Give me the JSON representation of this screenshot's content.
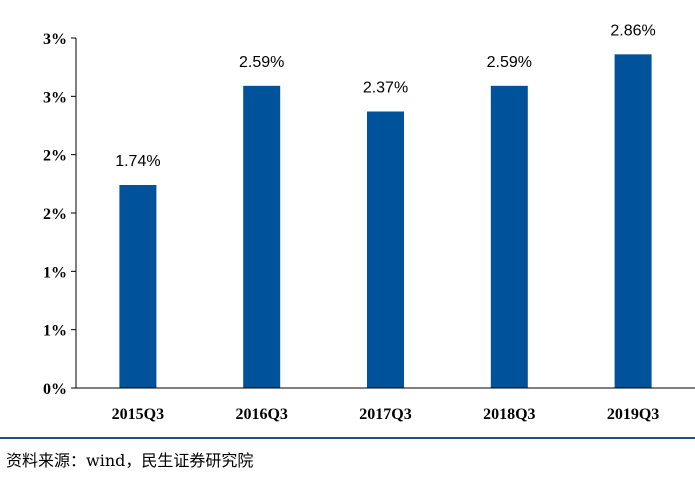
{
  "chart_data": {
    "type": "bar",
    "categories": [
      "2015Q3",
      "2016Q3",
      "2017Q3",
      "2018Q3",
      "2019Q3"
    ],
    "values": [
      1.74,
      2.59,
      2.37,
      2.59,
      2.86
    ],
    "data_labels": [
      "1.74%",
      "2.59%",
      "2.37%",
      "2.59%",
      "2.86%"
    ],
    "ytick_labels": [
      "0%",
      "1%",
      "1%",
      "2%",
      "2%",
      "3%",
      "3%"
    ],
    "ylim": [
      0,
      3
    ],
    "bar_color": "#00529b",
    "grid": false,
    "legend": "none"
  },
  "footer": {
    "source": "资料来源：wind，民生证券研究院"
  }
}
